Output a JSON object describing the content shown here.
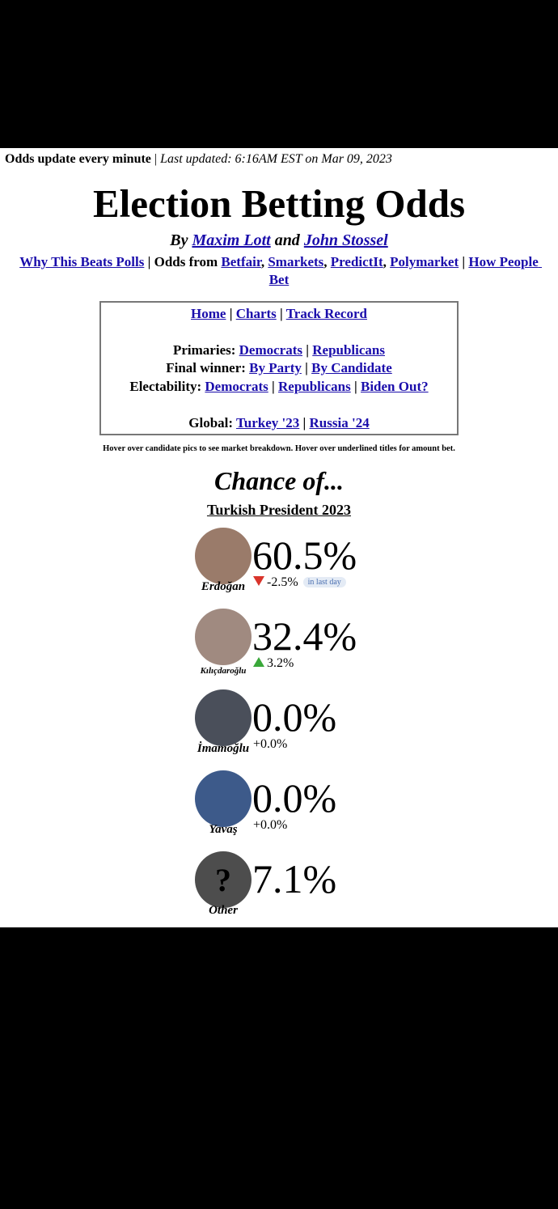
{
  "top_bar": [
    {
      "text": "Odds update every minute",
      "style": "bold"
    },
    {
      "text": " | ",
      "style": "plain"
    },
    {
      "text": "Last updated: 6:16AM EST on Mar 09, 2023",
      "style": "italic"
    }
  ],
  "header": {
    "title": "Election Betting Odds",
    "byline": [
      {
        "text": "By ",
        "link": false
      },
      {
        "text": "Maxim Lott",
        "link": true
      },
      {
        "text": " and ",
        "link": false
      },
      {
        "text": "John Stossel",
        "link": true
      }
    ],
    "sources": [
      {
        "text": "Why This Beats Polls",
        "link": true
      },
      {
        "text": " | Odds from ",
        "link": false
      },
      {
        "text": "Betfair",
        "link": true
      },
      {
        "text": ", ",
        "link": false
      },
      {
        "text": "Smarkets",
        "link": true
      },
      {
        "text": ", ",
        "link": false
      },
      {
        "text": "PredictIt",
        "link": true
      },
      {
        "text": ", ",
        "link": false
      },
      {
        "text": "Polymarket",
        "link": true
      },
      {
        "text": " | ",
        "link": false
      },
      {
        "text": "How People Bet",
        "link": true
      }
    ]
  },
  "nav_box": [
    [
      {
        "text": "Home",
        "link": true
      },
      {
        "text": " | ",
        "link": false
      },
      {
        "text": "Charts",
        "link": true
      },
      {
        "text": " | ",
        "link": false
      },
      {
        "text": "Track Record",
        "link": true
      }
    ],
    [
      {
        "text": "Primaries: ",
        "link": false
      },
      {
        "text": "Democrats",
        "link": true
      },
      {
        "text": " | ",
        "link": false
      },
      {
        "text": "Republicans",
        "link": true
      }
    ],
    [
      {
        "text": "Final winner: ",
        "link": false
      },
      {
        "text": "By Party",
        "link": true
      },
      {
        "text": " | ",
        "link": false
      },
      {
        "text": "By Candidate",
        "link": true
      }
    ],
    [
      {
        "text": "Electability: ",
        "link": false
      },
      {
        "text": "Democrats",
        "link": true
      },
      {
        "text": " | ",
        "link": false
      },
      {
        "text": "Republicans",
        "link": true
      },
      {
        "text": " | ",
        "link": false
      },
      {
        "text": "Biden Out?",
        "link": true
      }
    ],
    [
      {
        "text": "Global: ",
        "link": false
      },
      {
        "text": "Turkey '23",
        "link": true
      },
      {
        "text": " | ",
        "link": false
      },
      {
        "text": "Russia '24",
        "link": true
      }
    ]
  ],
  "hover_note": "Hover over candidate pics to see market breakdown. Hover over underlined titles for amount bet.",
  "section": {
    "heading": "Chance of...",
    "market": "Turkish President 2023",
    "period_selector": "in last day",
    "candidates": [
      {
        "name": "Erdoğan",
        "chance": "60.5%",
        "change": "-2.5%",
        "trend": "down",
        "photo_color": "#9a7b6a"
      },
      {
        "name": "Kılıçdaroğlu",
        "chance": "32.4%",
        "change": "3.2%",
        "trend": "up",
        "photo_color": "#a08a80"
      },
      {
        "name": "İmamoğlu",
        "chance": "0.0%",
        "change": "+0.0%",
        "trend": "none",
        "photo_color": "#4a4f5a"
      },
      {
        "name": "Yavaş",
        "chance": "0.0%",
        "change": "+0.0%",
        "trend": "none",
        "photo_color": "#3d5a8a"
      },
      {
        "name": "Other",
        "chance": "7.1%",
        "change": null,
        "trend": "none",
        "photo_color": "#4d4d4d",
        "placeholder": "?"
      }
    ]
  }
}
